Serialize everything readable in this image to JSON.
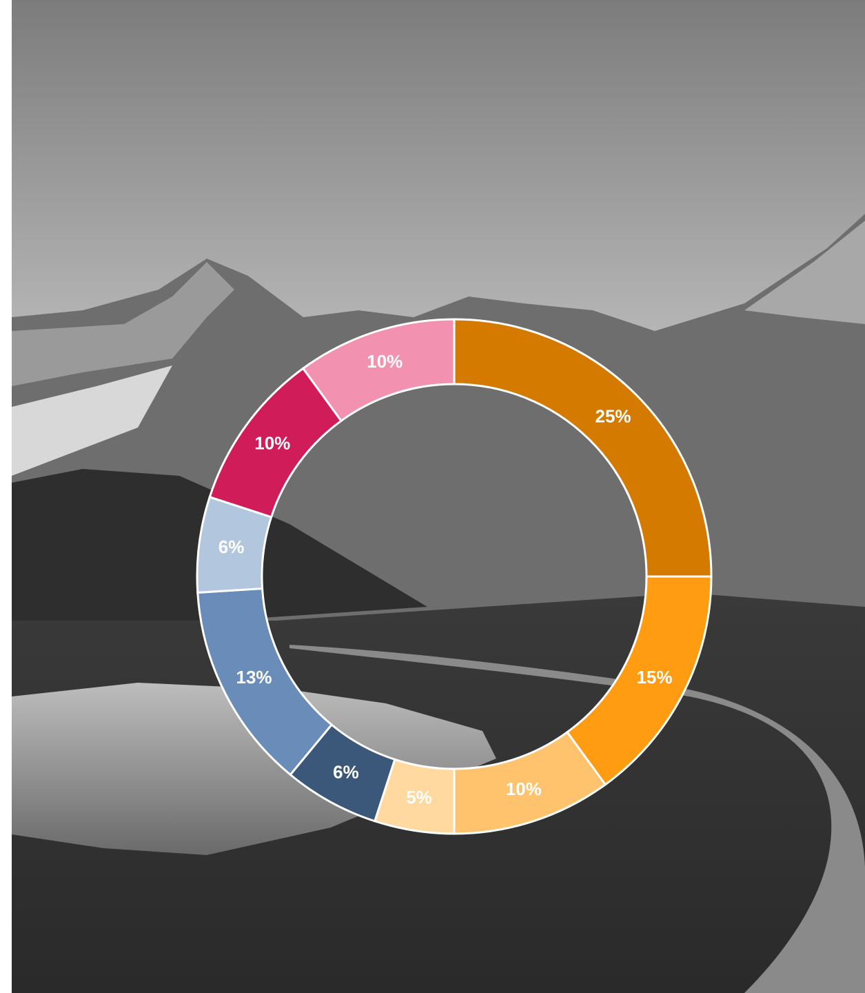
{
  "chart_data": {
    "type": "donut",
    "values": [
      25,
      15,
      10,
      5,
      6,
      13,
      6,
      10,
      10
    ],
    "value_labels": [
      "25%",
      "15%",
      "10%",
      "5%",
      "6%",
      "13%",
      "6%",
      "10%",
      "10%"
    ],
    "colors": [
      "#d47a00",
      "#ff9c12",
      "#ffc36e",
      "#ffd9a0",
      "#3b587a",
      "#6a8cb8",
      "#b2c6dd",
      "#d01c58",
      "#f391b0"
    ]
  }
}
